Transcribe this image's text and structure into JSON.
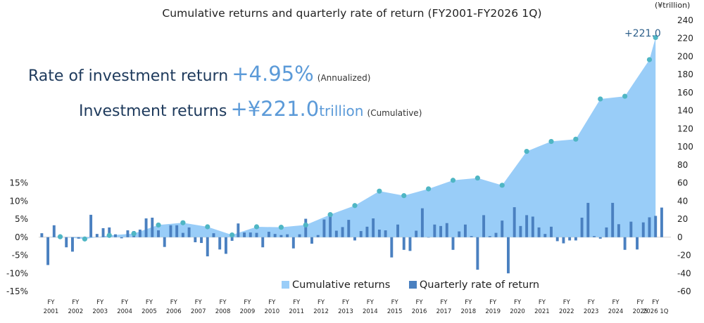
{
  "title": "Cumulative returns and quarterly rate of return (FY2001-FY2026 1Q)",
  "headline": {
    "rate_label": "Rate of investment return",
    "rate_value": "+4.95%",
    "rate_note": "(Annualized)",
    "returns_label": "Investment returns",
    "returns_value": "+¥221.0",
    "returns_unit": "trillion",
    "returns_note": "(Cumulative)"
  },
  "colors": {
    "area": "#99cdf8",
    "bars": "#4a80c0",
    "dots": "#4fb6c4",
    "headline_dark": "#1e3a5c",
    "headline_accent": "#5b9ad8"
  },
  "chart_data": {
    "type": "bar+area",
    "right_axis_unit": "(¥trillion)",
    "end_label": "+221.0",
    "left_axis": {
      "label": "Quarterly rate of return (%)",
      "ylim": [
        -15,
        15
      ],
      "ticks": [
        "15%",
        "10%",
        "5%",
        "0%",
        "-5%",
        "-10%",
        "-15%"
      ]
    },
    "right_axis": {
      "label": "Cumulative returns (¥ trillion)",
      "ylim": [
        -60,
        240
      ],
      "ticks": [
        "240",
        "220",
        "200",
        "180",
        "160",
        "140",
        "120",
        "100",
        "80",
        "60",
        "40",
        "20",
        "0",
        "-20",
        "-40",
        "-60"
      ]
    },
    "x_labels": [
      {
        "fy": "FY",
        "year": "2001"
      },
      {
        "fy": "FY",
        "year": "2002"
      },
      {
        "fy": "FY",
        "year": "2003"
      },
      {
        "fy": "FY",
        "year": "2004"
      },
      {
        "fy": "FY",
        "year": "2005"
      },
      {
        "fy": "FY",
        "year": "2006"
      },
      {
        "fy": "FY",
        "year": "2007"
      },
      {
        "fy": "FY",
        "year": "2008"
      },
      {
        "fy": "FY",
        "year": "2009"
      },
      {
        "fy": "FY",
        "year": "2010"
      },
      {
        "fy": "FY",
        "year": "2011"
      },
      {
        "fy": "FY",
        "year": "2012"
      },
      {
        "fy": "FY",
        "year": "2013"
      },
      {
        "fy": "FY",
        "year": "2014"
      },
      {
        "fy": "FY",
        "year": "2015"
      },
      {
        "fy": "FY",
        "year": "2016"
      },
      {
        "fy": "FY",
        "year": "2017"
      },
      {
        "fy": "FY",
        "year": "2018"
      },
      {
        "fy": "FY",
        "year": "2019"
      },
      {
        "fy": "FY",
        "year": "2020"
      },
      {
        "fy": "FY",
        "year": "2021"
      },
      {
        "fy": "FY",
        "year": "2022"
      },
      {
        "fy": "FY",
        "year": "2023"
      },
      {
        "fy": "FY",
        "year": "2024"
      },
      {
        "fy": "FY",
        "year": "2025"
      },
      {
        "fy": "FY",
        "year": "2026 1Q"
      }
    ],
    "series": [
      {
        "name": "Cumulative returns",
        "type": "area",
        "axis": "right",
        "points": [
          [
            "FY2001 Q1",
            0
          ],
          [
            "FY2001 Q4",
            0.5
          ],
          [
            "FY2002 Q4",
            -2
          ],
          [
            "FY2003 Q4",
            2
          ],
          [
            "FY2004 Q4",
            4
          ],
          [
            "FY2005 Q4",
            13.5
          ],
          [
            "FY2006 Q4",
            16
          ],
          [
            "FY2007 Q4",
            11.5
          ],
          [
            "FY2008 Q4",
            2.5
          ],
          [
            "FY2009 Q4",
            11.5
          ],
          [
            "FY2010 Q4",
            11
          ],
          [
            "FY2011 Q4",
            13.5
          ],
          [
            "FY2012 Q4",
            25
          ],
          [
            "FY2013 Q4",
            35
          ],
          [
            "FY2014 Q4",
            51
          ],
          [
            "FY2015 Q4",
            46
          ],
          [
            "FY2016 Q4",
            53.5
          ],
          [
            "FY2017 Q4",
            63
          ],
          [
            "FY2018 Q4",
            65.5
          ],
          [
            "FY2019 Q4",
            57.5
          ],
          [
            "FY2020 Q4",
            95
          ],
          [
            "FY2021 Q4",
            106
          ],
          [
            "FY2022 Q4",
            108.5
          ],
          [
            "FY2023 Q4",
            153
          ],
          [
            "FY2024 Q4",
            156
          ],
          [
            "FY2025 Q4",
            196.5
          ],
          [
            "FY2026 Q1",
            221.0
          ]
        ]
      },
      {
        "name": "Quarterly rate of return",
        "type": "bar",
        "axis": "left",
        "values": [
          1.1,
          -7.7,
          3.3,
          0.3,
          -2.8,
          -4.0,
          -0.4,
          -0.8,
          6.2,
          0.9,
          2.5,
          2.7,
          0.8,
          -0.3,
          1.9,
          1.7,
          2.1,
          5.2,
          5.4,
          1.9,
          -2.7,
          3.3,
          3.3,
          1.2,
          2.7,
          -1.4,
          -1.6,
          -5.3,
          1.1,
          -3.4,
          -4.6,
          -1.0,
          3.8,
          1.3,
          1.3,
          1.2,
          -2.8,
          1.5,
          0.9,
          0.6,
          0.8,
          -3.1,
          0.8,
          5.1,
          -1.8,
          0.6,
          4.9,
          6.2,
          1.8,
          2.8,
          4.8,
          -0.9,
          1.7,
          2.9,
          5.2,
          2.1,
          1.9,
          -5.6,
          3.5,
          -3.5,
          -3.8,
          1.8,
          8.0,
          -0.1,
          3.5,
          3.1,
          3.9,
          -3.5,
          1.6,
          3.5,
          0.3,
          -9.0,
          6.1,
          0.3,
          1.2,
          4.6,
          -10.0,
          8.3,
          3.1,
          6.1,
          5.7,
          2.7,
          0.9,
          2.9,
          -1.1,
          -1.7,
          -0.9,
          -0.9,
          5.4,
          9.5,
          0.3,
          -0.4,
          2.7,
          9.5,
          3.6,
          -3.5,
          4.3,
          -3.4,
          4.1,
          5.5,
          5.9,
          8.2
        ]
      }
    ],
    "legend": {
      "position": "bottom-center",
      "items": [
        "Cumulative returns",
        "Quarterly rate of return"
      ]
    }
  }
}
